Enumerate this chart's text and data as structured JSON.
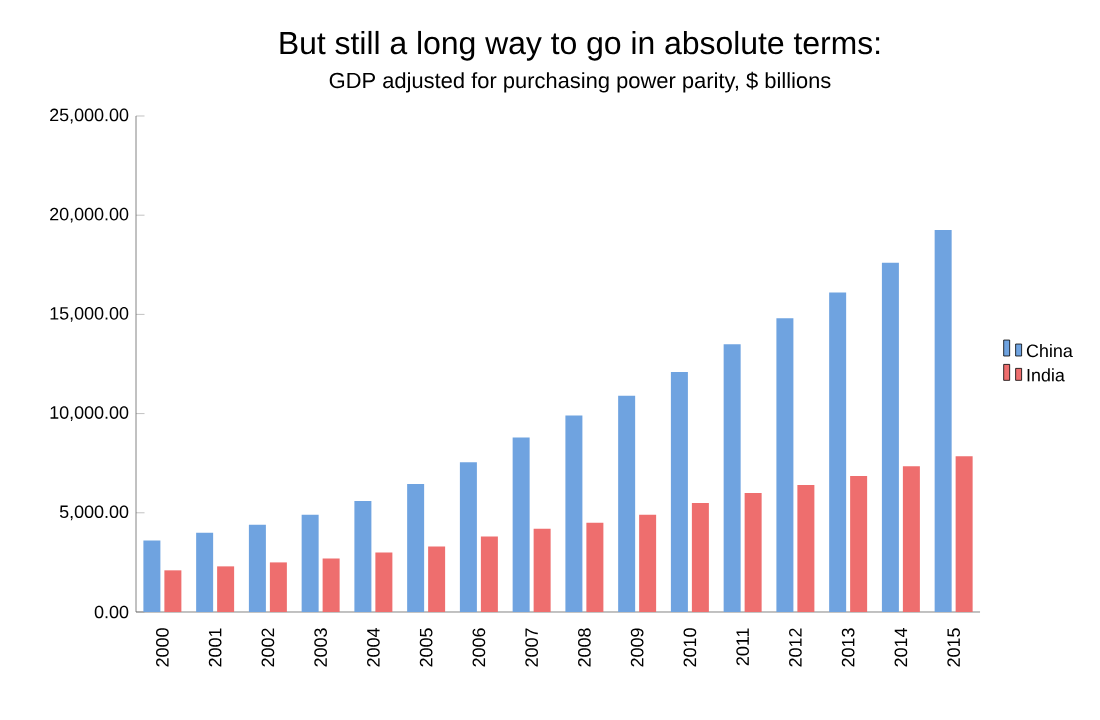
{
  "chart_data": {
    "type": "bar",
    "title": "But still a long way to go in absolute terms:",
    "subtitle": "GDP adjusted for purchasing power parity, $ billions",
    "categories": [
      "2000",
      "2001",
      "2002",
      "2003",
      "2004",
      "2005",
      "2006",
      "2007",
      "2008",
      "2009",
      "2010",
      "2011",
      "2012",
      "2013",
      "2014",
      "2015"
    ],
    "series": [
      {
        "name": "China",
        "color": "#6fa3e0",
        "values": [
          3600,
          4000,
          4400,
          4900,
          5600,
          6450,
          7550,
          8800,
          9900,
          10900,
          12100,
          13500,
          14800,
          16100,
          17600,
          19250
        ]
      },
      {
        "name": "India",
        "color": "#ee6e6e",
        "values": [
          2100,
          2300,
          2500,
          2700,
          3000,
          3300,
          3800,
          4200,
          4500,
          4900,
          5500,
          6000,
          6400,
          6850,
          7350,
          7850
        ]
      }
    ],
    "ylim": [
      0,
      25000
    ],
    "yticks": [
      {
        "value": 0,
        "label": "0.00"
      },
      {
        "value": 5000,
        "label": "5,000.00"
      },
      {
        "value": 10000,
        "label": "10,000.00"
      },
      {
        "value": 15000,
        "label": "15,000.00"
      },
      {
        "value": 20000,
        "label": "20,000.00"
      },
      {
        "value": 25000,
        "label": "25,000.00"
      }
    ],
    "grid": false,
    "legend": "right"
  }
}
